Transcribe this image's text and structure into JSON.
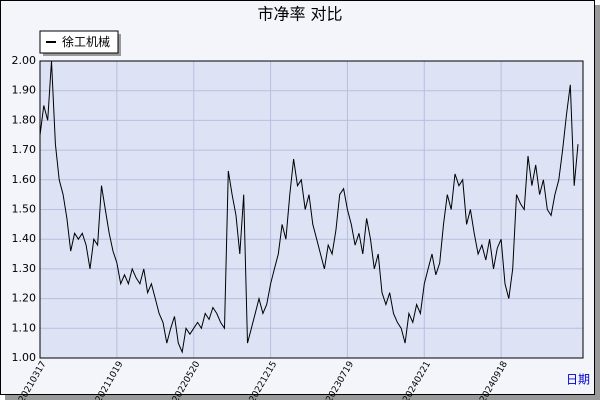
{
  "chart_data": {
    "type": "line",
    "title": "市净率  对比",
    "x_label": "日期",
    "categories": [
      "20210317",
      null,
      null,
      null,
      null,
      null,
      null,
      null,
      null,
      null,
      null,
      null,
      null,
      null,
      null,
      null,
      null,
      null,
      null,
      null,
      "20211019",
      null,
      null,
      null,
      null,
      null,
      null,
      null,
      null,
      null,
      null,
      null,
      null,
      null,
      null,
      null,
      null,
      null,
      null,
      null,
      "20220520",
      null,
      null,
      null,
      null,
      null,
      null,
      null,
      null,
      null,
      null,
      null,
      null,
      null,
      null,
      null,
      null,
      null,
      null,
      null,
      "20221215",
      null,
      null,
      null,
      null,
      null,
      null,
      null,
      null,
      null,
      null,
      null,
      null,
      null,
      null,
      null,
      null,
      null,
      null,
      null,
      "20230719",
      null,
      null,
      null,
      null,
      null,
      null,
      null,
      null,
      null,
      null,
      null,
      null,
      null,
      null,
      null,
      null,
      null,
      null,
      null,
      "20240221",
      null,
      null,
      null,
      null,
      null,
      null,
      null,
      null,
      null,
      null,
      null,
      null,
      null,
      null,
      null,
      null,
      null,
      null,
      null,
      "20240918",
      null,
      null,
      null,
      null,
      null,
      null,
      null,
      null,
      null,
      null,
      null,
      null,
      null,
      null,
      null,
      null,
      null,
      null,
      null,
      null
    ],
    "series": [
      {
        "name": "徐工机械",
        "color": "#000000",
        "values": [
          1.75,
          1.85,
          1.8,
          2.0,
          1.72,
          1.6,
          1.55,
          1.47,
          1.36,
          1.42,
          1.4,
          1.42,
          1.38,
          1.3,
          1.4,
          1.38,
          1.58,
          1.5,
          1.42,
          1.36,
          1.32,
          1.25,
          1.28,
          1.25,
          1.3,
          1.27,
          1.25,
          1.3,
          1.22,
          1.25,
          1.2,
          1.15,
          1.12,
          1.05,
          1.1,
          1.14,
          1.05,
          1.02,
          1.1,
          1.08,
          1.1,
          1.12,
          1.1,
          1.15,
          1.13,
          1.17,
          1.15,
          1.12,
          1.1,
          1.63,
          1.55,
          1.48,
          1.35,
          1.55,
          1.05,
          1.1,
          1.15,
          1.2,
          1.15,
          1.18,
          1.25,
          1.3,
          1.35,
          1.45,
          1.4,
          1.55,
          1.67,
          1.58,
          1.6,
          1.5,
          1.55,
          1.45,
          1.4,
          1.35,
          1.3,
          1.38,
          1.35,
          1.43,
          1.55,
          1.57,
          1.5,
          1.45,
          1.38,
          1.42,
          1.35,
          1.47,
          1.4,
          1.3,
          1.35,
          1.22,
          1.18,
          1.22,
          1.15,
          1.12,
          1.1,
          1.05,
          1.15,
          1.12,
          1.18,
          1.15,
          1.25,
          1.3,
          1.35,
          1.28,
          1.32,
          1.45,
          1.55,
          1.5,
          1.62,
          1.58,
          1.6,
          1.45,
          1.5,
          1.42,
          1.35,
          1.38,
          1.33,
          1.4,
          1.3,
          1.37,
          1.4,
          1.25,
          1.2,
          1.3,
          1.55,
          1.52,
          1.5,
          1.68,
          1.58,
          1.65,
          1.55,
          1.6,
          1.5,
          1.48,
          1.55,
          1.6,
          1.7,
          1.82,
          1.92,
          1.58,
          1.72
        ]
      }
    ],
    "ylim": [
      1.0,
      2.0
    ],
    "yticks": [
      {
        "value": 1.0,
        "label": "1.00"
      },
      {
        "value": 1.1,
        "label": "1.10"
      },
      {
        "value": 1.2,
        "label": "1.20"
      },
      {
        "value": 1.3,
        "label": "1.30"
      },
      {
        "value": 1.4,
        "label": "1.40"
      },
      {
        "value": 1.5,
        "label": "1.50"
      },
      {
        "value": 1.6,
        "label": "1.60"
      },
      {
        "value": 1.7,
        "label": "1.70"
      },
      {
        "value": 1.8,
        "label": "1.80"
      },
      {
        "value": 1.9,
        "label": "1.90"
      },
      {
        "value": 2.0,
        "label": "2.00"
      }
    ],
    "grid": true,
    "legend": "top-left"
  }
}
